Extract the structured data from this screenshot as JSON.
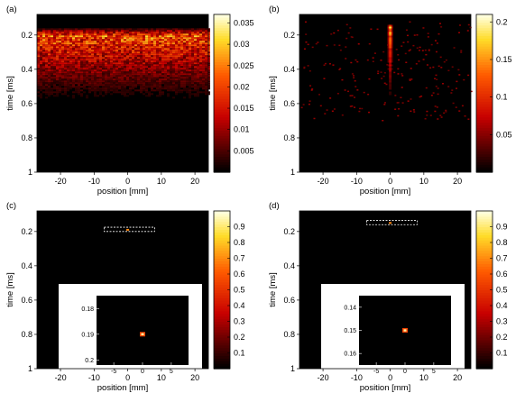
{
  "chart_data": [
    {
      "type": "heatmap",
      "panel_label": "(a)",
      "xlabel": "position [mm]",
      "ylabel": "time [ms]",
      "xlim": [
        -27,
        24
      ],
      "ylim": [
        0.08,
        1.0
      ],
      "xticks": [
        -20,
        -10,
        0,
        10,
        20
      ],
      "yticks": [
        0.2,
        0.4,
        0.6,
        0.8,
        1
      ],
      "colorbar": {
        "vmin": 0,
        "vmax": 0.037,
        "ticks": [
          0.005,
          0.01,
          0.015,
          0.02,
          0.025,
          0.03,
          0.035
        ]
      },
      "content": {
        "kind": "band",
        "t_start": 0.15,
        "t_peak": 0.2,
        "decay_to": 0.65,
        "x_range": [
          -27,
          24
        ],
        "peak_level": 0.8
      },
      "annotations": []
    },
    {
      "type": "heatmap",
      "panel_label": "(b)",
      "xlabel": "position [mm]",
      "ylabel": "time [ms]",
      "xlim": [
        -27,
        24
      ],
      "ylim": [
        0.08,
        1.0
      ],
      "xticks": [
        -20,
        -10,
        0,
        10,
        20
      ],
      "yticks": [
        0.2,
        0.4,
        0.6,
        0.8,
        1
      ],
      "colorbar": {
        "vmin": 0,
        "vmax": 0.21,
        "ticks": [
          0.05,
          0.1,
          0.15,
          0.2
        ]
      },
      "content": {
        "kind": "column",
        "x_center": 0,
        "t_start": 0.13,
        "t_peak": 0.15,
        "decay_to": 0.75,
        "peak_level": 0.95
      },
      "annotations": []
    },
    {
      "type": "heatmap",
      "panel_label": "(c)",
      "xlabel": "position [mm]",
      "ylabel": "time [ms]",
      "xlim": [
        -27,
        24
      ],
      "ylim": [
        0.08,
        1.0
      ],
      "xticks": [
        -20,
        -10,
        0,
        10,
        20
      ],
      "yticks": [
        0.2,
        0.4,
        0.6,
        0.8,
        1
      ],
      "colorbar": {
        "vmin": 0,
        "vmax": 1,
        "ticks": [
          0.1,
          0.2,
          0.3,
          0.4,
          0.5,
          0.6,
          0.7,
          0.8,
          0.9
        ]
      },
      "content": {
        "kind": "point",
        "x": 0,
        "t": 0.19
      },
      "annotations": [
        {
          "type": "dashed-rect",
          "x": [
            -7,
            8
          ],
          "t": [
            0.175,
            0.2
          ]
        }
      ],
      "inset": {
        "xlim": [
          -8,
          8
        ],
        "ylim": [
          0.175,
          0.202
        ],
        "xticks": [
          -5,
          0,
          5
        ],
        "yticks": [
          0.18,
          0.19,
          0.2
        ],
        "point": {
          "x": 0,
          "t": 0.19
        }
      }
    },
    {
      "type": "heatmap",
      "panel_label": "(d)",
      "xlabel": "position [mm]",
      "ylabel": "time [ms]",
      "xlim": [
        -27,
        24
      ],
      "ylim": [
        0.08,
        1.0
      ],
      "xticks": [
        -20,
        -10,
        0,
        10,
        20
      ],
      "yticks": [
        0.2,
        0.4,
        0.6,
        0.8,
        1
      ],
      "colorbar": {
        "vmin": 0,
        "vmax": 1,
        "ticks": [
          0.1,
          0.2,
          0.3,
          0.4,
          0.5,
          0.6,
          0.7,
          0.8,
          0.9
        ]
      },
      "content": {
        "kind": "point",
        "x": 0,
        "t": 0.15
      },
      "annotations": [
        {
          "type": "dashed-rect",
          "x": [
            -7,
            8
          ],
          "t": [
            0.135,
            0.16
          ]
        }
      ],
      "inset": {
        "xlim": [
          -8,
          8
        ],
        "ylim": [
          0.135,
          0.165
        ],
        "xticks": [
          -5,
          0,
          5
        ],
        "yticks": [
          0.14,
          0.15,
          0.16
        ],
        "point": {
          "x": 0,
          "t": 0.15
        }
      }
    }
  ]
}
